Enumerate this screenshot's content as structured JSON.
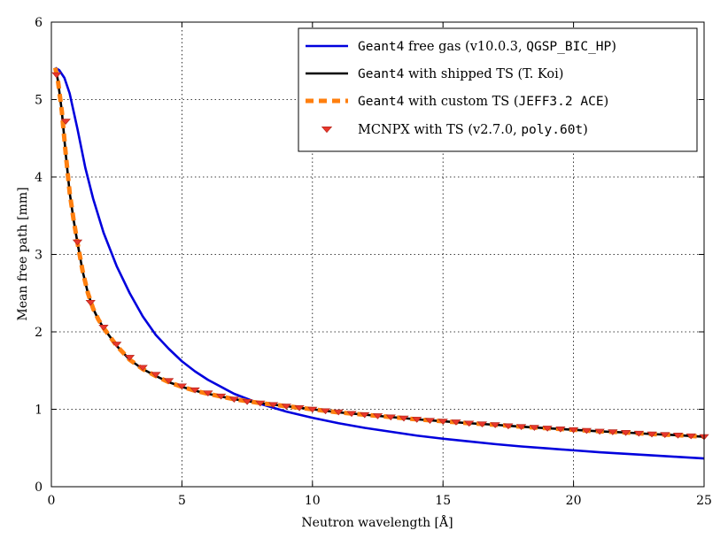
{
  "chart_data": {
    "type": "line",
    "title": "",
    "xlabel": "Neutron wavelength [Å]",
    "ylabel": "Mean free path [mm]",
    "xlim": [
      0,
      25
    ],
    "ylim": [
      0,
      6
    ],
    "xticks": [
      0,
      5,
      10,
      15,
      20,
      25
    ],
    "yticks": [
      0,
      1,
      2,
      3,
      4,
      5,
      6
    ],
    "grid": true,
    "legend_position": "top-right",
    "series": [
      {
        "name": "Geant4 free gas (v10.0.3, QGSP_BIC_HP)",
        "legend_parts": [
          {
            "text": "Geant4",
            "font": "mono"
          },
          {
            "text": " free gas (v10.0.3, ",
            "font": "serif"
          },
          {
            "text": "QGSP_BIC_HP",
            "font": "mono"
          },
          {
            "text": ")",
            "font": "serif"
          }
        ],
        "style": "line",
        "color": "#0000dd",
        "x": [
          0.15,
          0.3,
          0.5,
          0.7,
          1.0,
          1.3,
          1.6,
          2.0,
          2.5,
          3.0,
          3.5,
          4.0,
          4.5,
          5.0,
          5.5,
          6.0,
          7.0,
          8.0,
          9.0,
          10.0,
          11.0,
          12.0,
          13.0,
          14.0,
          15.0,
          16.0,
          17.0,
          18.0,
          19.0,
          20.0,
          21.0,
          22.0,
          23.0,
          24.0,
          25.0
        ],
        "y": [
          5.41,
          5.38,
          5.28,
          5.08,
          4.62,
          4.12,
          3.72,
          3.28,
          2.85,
          2.5,
          2.2,
          1.96,
          1.78,
          1.62,
          1.49,
          1.38,
          1.2,
          1.07,
          0.97,
          0.89,
          0.82,
          0.76,
          0.71,
          0.66,
          0.62,
          0.585,
          0.55,
          0.52,
          0.495,
          0.47,
          0.445,
          0.425,
          0.405,
          0.385,
          0.365
        ]
      },
      {
        "name": "Geant4 with shipped TS (T. Koi)",
        "legend_parts": [
          {
            "text": "Geant4",
            "font": "mono"
          },
          {
            "text": " with shipped TS (T. Koi)",
            "font": "serif"
          }
        ],
        "style": "line",
        "color": "#000000",
        "x": [
          0.15,
          0.25,
          0.4,
          0.55,
          0.7,
          0.85,
          1.0,
          1.2,
          1.4,
          1.6,
          1.8,
          2.0,
          2.5,
          3.0,
          3.5,
          4.0,
          4.5,
          5.0,
          5.5,
          6.0,
          7.0,
          8.0,
          9.0,
          10.0,
          11.0,
          12.0,
          13.0,
          14.0,
          15.0,
          16.0,
          17.0,
          18.0,
          19.0,
          20.0,
          21.0,
          22.0,
          23.0,
          24.0,
          25.0
        ],
        "y": [
          5.41,
          5.25,
          4.85,
          4.3,
          3.8,
          3.45,
          3.15,
          2.78,
          2.5,
          2.3,
          2.16,
          2.05,
          1.82,
          1.64,
          1.52,
          1.43,
          1.35,
          1.29,
          1.24,
          1.2,
          1.13,
          1.08,
          1.04,
          1.0,
          0.96,
          0.93,
          0.9,
          0.87,
          0.845,
          0.82,
          0.8,
          0.775,
          0.755,
          0.735,
          0.715,
          0.7,
          0.68,
          0.665,
          0.645
        ]
      },
      {
        "name": "Geant4 with custom TS (JEFF3.2 ACE)",
        "legend_parts": [
          {
            "text": "Geant4",
            "font": "mono"
          },
          {
            "text": " with custom TS (",
            "font": "serif"
          },
          {
            "text": "JEFF3.2 ACE",
            "font": "mono"
          },
          {
            "text": ")",
            "font": "serif"
          }
        ],
        "style": "dashed",
        "color": "#ff7f0e",
        "x": [
          0.15,
          0.25,
          0.4,
          0.55,
          0.7,
          0.85,
          1.0,
          1.2,
          1.4,
          1.6,
          1.8,
          2.0,
          2.5,
          3.0,
          3.5,
          4.0,
          4.5,
          5.0,
          5.5,
          6.0,
          7.0,
          8.0,
          9.0,
          10.0,
          11.0,
          12.0,
          13.0,
          14.0,
          15.0,
          16.0,
          17.0,
          18.0,
          19.0,
          20.0,
          21.0,
          22.0,
          23.0,
          24.0,
          25.0
        ],
        "y": [
          5.41,
          5.25,
          4.85,
          4.3,
          3.8,
          3.45,
          3.15,
          2.78,
          2.5,
          2.3,
          2.16,
          2.05,
          1.82,
          1.64,
          1.52,
          1.43,
          1.35,
          1.29,
          1.24,
          1.2,
          1.13,
          1.08,
          1.04,
          1.0,
          0.96,
          0.93,
          0.9,
          0.87,
          0.845,
          0.82,
          0.8,
          0.775,
          0.755,
          0.735,
          0.715,
          0.7,
          0.68,
          0.665,
          0.645
        ]
      },
      {
        "name": "MCNPX with TS (v2.7.0, poly.60t)",
        "legend_parts": [
          {
            "text": "MCNPX with TS (v2.7.0, ",
            "font": "serif"
          },
          {
            "text": "poly.60t",
            "font": "mono"
          },
          {
            "text": ")",
            "font": "serif"
          }
        ],
        "style": "markers",
        "color": "#e8372c",
        "x": [
          0.2,
          0.55,
          1.0,
          1.5,
          2.0,
          2.5,
          3.0,
          3.5,
          4.0,
          4.5,
          5.0,
          5.5,
          6.0,
          6.5,
          7.0,
          7.5,
          8.0,
          8.5,
          9.0,
          9.5,
          10.0,
          10.5,
          11.0,
          11.5,
          12.0,
          12.5,
          13.0,
          13.5,
          14.0,
          14.5,
          15.0,
          15.5,
          16.0,
          16.5,
          17.0,
          17.5,
          18.0,
          18.5,
          19.0,
          19.5,
          20.0,
          20.5,
          21.0,
          21.5,
          22.0,
          22.5,
          23.0,
          23.5,
          24.0,
          24.5,
          25.0
        ],
        "y": [
          5.32,
          4.72,
          3.16,
          2.38,
          2.06,
          1.84,
          1.67,
          1.54,
          1.45,
          1.37,
          1.3,
          1.25,
          1.21,
          1.17,
          1.13,
          1.1,
          1.08,
          1.06,
          1.04,
          1.02,
          1.0,
          0.98,
          0.965,
          0.945,
          0.93,
          0.915,
          0.9,
          0.885,
          0.87,
          0.855,
          0.845,
          0.835,
          0.82,
          0.81,
          0.8,
          0.785,
          0.775,
          0.765,
          0.755,
          0.745,
          0.735,
          0.725,
          0.715,
          0.708,
          0.7,
          0.69,
          0.68,
          0.672,
          0.665,
          0.656,
          0.645
        ]
      }
    ]
  }
}
